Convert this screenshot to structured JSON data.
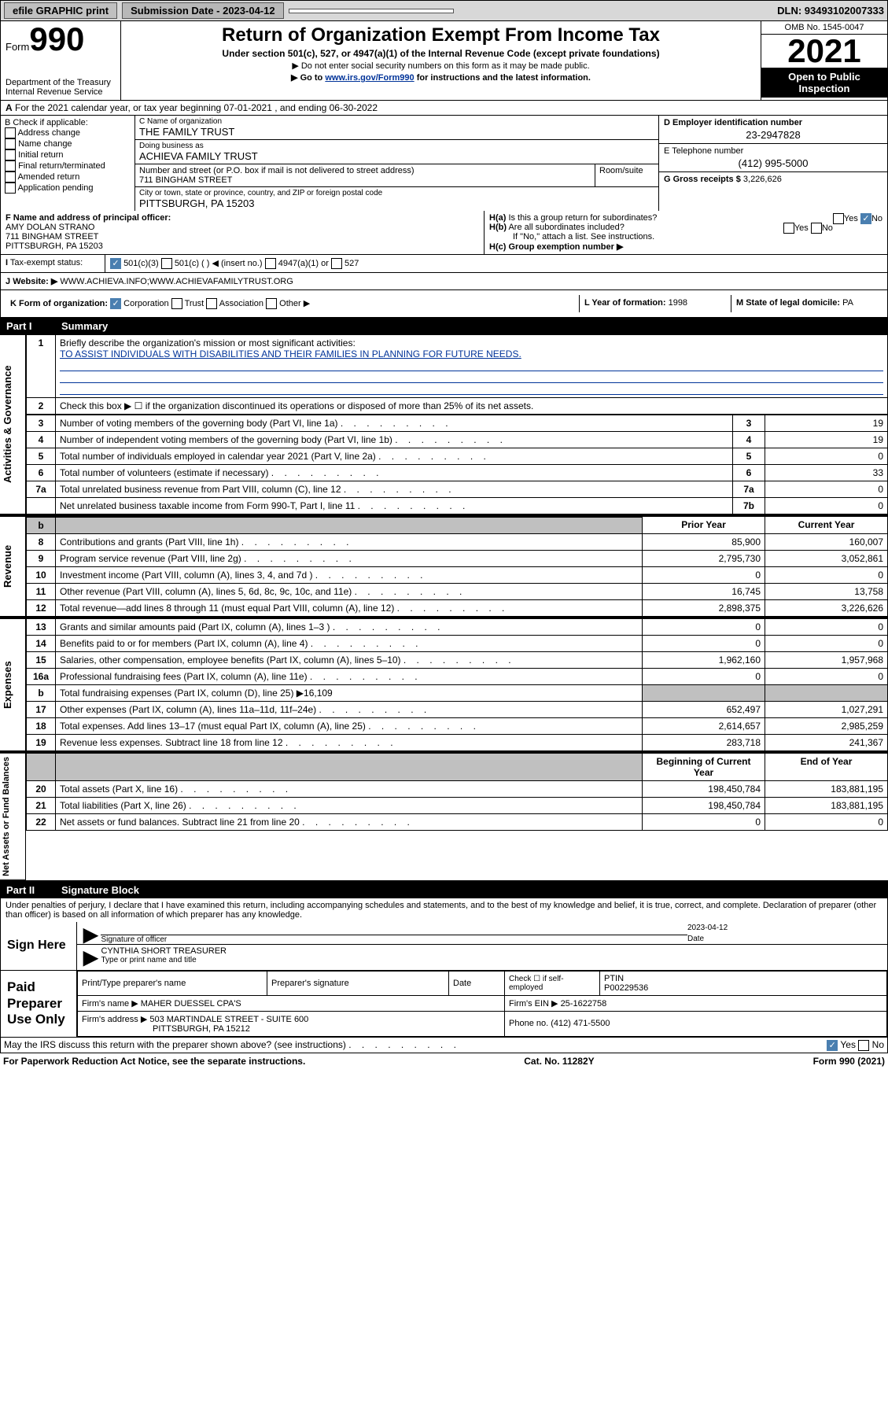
{
  "top": {
    "efile": "efile GRAPHIC print",
    "sub_label": "Submission Date - 2023-04-12",
    "dln": "DLN: 93493102007333"
  },
  "header": {
    "form": "Form",
    "form_num": "990",
    "dept": "Department of the Treasury",
    "irs": "Internal Revenue Service",
    "title": "Return of Organization Exempt From Income Tax",
    "sub": "Under section 501(c), 527, or 4947(a)(1) of the Internal Revenue Code (except private foundations)",
    "tiny1": "▶ Do not enter social security numbers on this form as it may be made public.",
    "tiny2_a": "▶ Go to ",
    "tiny2_link": "www.irs.gov/Form990",
    "tiny2_b": " for instructions and the latest information.",
    "omb": "OMB No. 1545-0047",
    "year": "2021",
    "open": "Open to Public Inspection"
  },
  "row_a": "For the 2021 calendar year, or tax year beginning 07-01-2021   , and ending 06-30-2022",
  "b_options": [
    "Address change",
    "Name change",
    "Initial return",
    "Final return/terminated",
    "Amended return",
    "Application pending"
  ],
  "b_label": "B Check if applicable:",
  "c": {
    "name_label": "C Name of organization",
    "name": "THE FAMILY TRUST",
    "dba_label": "Doing business as",
    "dba": "ACHIEVA FAMILY TRUST",
    "addr_label": "Number and street (or P.O. box if mail is not delivered to street address)",
    "room_label": "Room/suite",
    "addr": "711 BINGHAM STREET",
    "city_label": "City or town, state or province, country, and ZIP or foreign postal code",
    "city": "PITTSBURGH, PA  15203"
  },
  "d": {
    "label": "D Employer identification number",
    "val": "23-2947828"
  },
  "e": {
    "label": "E Telephone number",
    "val": "(412) 995-5000"
  },
  "g": {
    "label": "G Gross receipts $",
    "val": "3,226,626"
  },
  "f": {
    "label": "F Name and address of principal officer:",
    "name": "AMY DOLAN STRANO",
    "addr1": "711 BINGHAM STREET",
    "addr2": "PITTSBURGH, PA  15203"
  },
  "h": {
    "a": "H(a)  Is this a group return for subordinates?",
    "a_yes": "Yes",
    "a_no": "No",
    "b": "H(b)  Are all subordinates included?",
    "b_yes": "Yes",
    "b_no": "No",
    "b_note": "If \"No,\" attach a list. See instructions.",
    "c": "H(c)  Group exemption number ▶"
  },
  "i": {
    "label": "Tax-exempt status:",
    "o1": "501(c)(3)",
    "o2": "501(c) (  ) ◀ (insert no.)",
    "o3": "4947(a)(1) or",
    "o4": "527"
  },
  "j": {
    "label": "Website: ▶",
    "val": "WWW.ACHIEVA.INFO;WWW.ACHIEVAFAMILYTRUST.ORG"
  },
  "k": {
    "label": "K Form of organization:",
    "o1": "Corporation",
    "o2": "Trust",
    "o3": "Association",
    "o4": "Other ▶"
  },
  "l": {
    "label": "L Year of formation:",
    "val": "1998"
  },
  "m": {
    "label": "M State of legal domicile:",
    "val": "PA"
  },
  "part1": {
    "label": "Part I",
    "title": "Summary"
  },
  "summary": {
    "q1": "Briefly describe the organization's mission or most significant activities:",
    "mission": "TO ASSIST INDIVIDUALS WITH DISABILITIES AND THEIR FAMILIES IN PLANNING FOR FUTURE NEEDS.",
    "q2": "Check this box ▶ ☐  if the organization discontinued its operations or disposed of more than 25% of its net assets.",
    "rows_gov": [
      {
        "n": "3",
        "label": "Number of voting members of the governing body (Part VI, line 1a)",
        "box": "3",
        "val": "19"
      },
      {
        "n": "4",
        "label": "Number of independent voting members of the governing body (Part VI, line 1b)",
        "box": "4",
        "val": "19"
      },
      {
        "n": "5",
        "label": "Total number of individuals employed in calendar year 2021 (Part V, line 2a)",
        "box": "5",
        "val": "0"
      },
      {
        "n": "6",
        "label": "Total number of volunteers (estimate if necessary)",
        "box": "6",
        "val": "33"
      },
      {
        "n": "7a",
        "label": "Total unrelated business revenue from Part VIII, column (C), line 12",
        "box": "7a",
        "val": "0"
      },
      {
        "n": "",
        "label": "Net unrelated business taxable income from Form 990-T, Part I, line 11",
        "box": "7b",
        "val": "0"
      }
    ],
    "hdr_prior": "Prior Year",
    "hdr_current": "Current Year",
    "rev": [
      {
        "n": "8",
        "label": "Contributions and grants (Part VIII, line 1h)",
        "p": "85,900",
        "c": "160,007"
      },
      {
        "n": "9",
        "label": "Program service revenue (Part VIII, line 2g)",
        "p": "2,795,730",
        "c": "3,052,861"
      },
      {
        "n": "10",
        "label": "Investment income (Part VIII, column (A), lines 3, 4, and 7d )",
        "p": "0",
        "c": "0"
      },
      {
        "n": "11",
        "label": "Other revenue (Part VIII, column (A), lines 5, 6d, 8c, 9c, 10c, and 11e)",
        "p": "16,745",
        "c": "13,758"
      },
      {
        "n": "12",
        "label": "Total revenue—add lines 8 through 11 (must equal Part VIII, column (A), line 12)",
        "p": "2,898,375",
        "c": "3,226,626"
      }
    ],
    "exp": [
      {
        "n": "13",
        "label": "Grants and similar amounts paid (Part IX, column (A), lines 1–3 )",
        "p": "0",
        "c": "0"
      },
      {
        "n": "14",
        "label": "Benefits paid to or for members (Part IX, column (A), line 4)",
        "p": "0",
        "c": "0"
      },
      {
        "n": "15",
        "label": "Salaries, other compensation, employee benefits (Part IX, column (A), lines 5–10)",
        "p": "1,962,160",
        "c": "1,957,968"
      },
      {
        "n": "16a",
        "label": "Professional fundraising fees (Part IX, column (A), line 11e)",
        "p": "0",
        "c": "0"
      },
      {
        "n": "b",
        "label": "Total fundraising expenses (Part IX, column (D), line 25) ▶16,109",
        "p": "",
        "c": "",
        "grey": true
      },
      {
        "n": "17",
        "label": "Other expenses (Part IX, column (A), lines 11a–11d, 11f–24e)",
        "p": "652,497",
        "c": "1,027,291"
      },
      {
        "n": "18",
        "label": "Total expenses. Add lines 13–17 (must equal Part IX, column (A), line 25)",
        "p": "2,614,657",
        "c": "2,985,259"
      },
      {
        "n": "19",
        "label": "Revenue less expenses. Subtract line 18 from line 12",
        "p": "283,718",
        "c": "241,367"
      }
    ],
    "hdr_begin": "Beginning of Current Year",
    "hdr_end": "End of Year",
    "net": [
      {
        "n": "20",
        "label": "Total assets (Part X, line 16)",
        "p": "198,450,784",
        "c": "183,881,195"
      },
      {
        "n": "21",
        "label": "Total liabilities (Part X, line 26)",
        "p": "198,450,784",
        "c": "183,881,195"
      },
      {
        "n": "22",
        "label": "Net assets or fund balances. Subtract line 21 from line 20",
        "p": "0",
        "c": "0"
      }
    ],
    "side_gov": "Activities & Governance",
    "side_rev": "Revenue",
    "side_exp": "Expenses",
    "side_net": "Net Assets or Fund Balances"
  },
  "part2": {
    "label": "Part II",
    "title": "Signature Block"
  },
  "declaration": "Under penalties of perjury, I declare that I have examined this return, including accompanying schedules and statements, and to the best of my knowledge and belief, it is true, correct, and complete. Declaration of preparer (other than officer) is based on all information of which preparer has any knowledge.",
  "sign": {
    "here": "Sign Here",
    "sig_officer": "Signature of officer",
    "date": "Date",
    "date_val": "2023-04-12",
    "name": "CYNTHIA SHORT TREASURER",
    "name_label": "Type or print name and title"
  },
  "prep": {
    "label": "Paid Preparer Use Only",
    "col1": "Print/Type preparer's name",
    "col2": "Preparer's signature",
    "col3": "Date",
    "check_label": "Check ☐ if self-employed",
    "ptin_label": "PTIN",
    "ptin": "P00229536",
    "firm_name_label": "Firm's name   ▶",
    "firm_name": "MAHER DUESSEL CPA'S",
    "firm_ein_label": "Firm's EIN ▶",
    "firm_ein": "25-1622758",
    "firm_addr_label": "Firm's address ▶",
    "firm_addr1": "503 MARTINDALE STREET - SUITE 600",
    "firm_addr2": "PITTSBURGH, PA  15212",
    "phone_label": "Phone no.",
    "phone": "(412) 471-5500"
  },
  "bottom": {
    "q": "May the IRS discuss this return with the preparer shown above? (see instructions)",
    "yes": "Yes",
    "no": "No"
  },
  "footer": {
    "left": "For Paperwork Reduction Act Notice, see the separate instructions.",
    "mid": "Cat. No. 11282Y",
    "right": "Form 990 (2021)"
  },
  "colors": {
    "link": "#003399",
    "check_bg": "#4a7fb0"
  }
}
